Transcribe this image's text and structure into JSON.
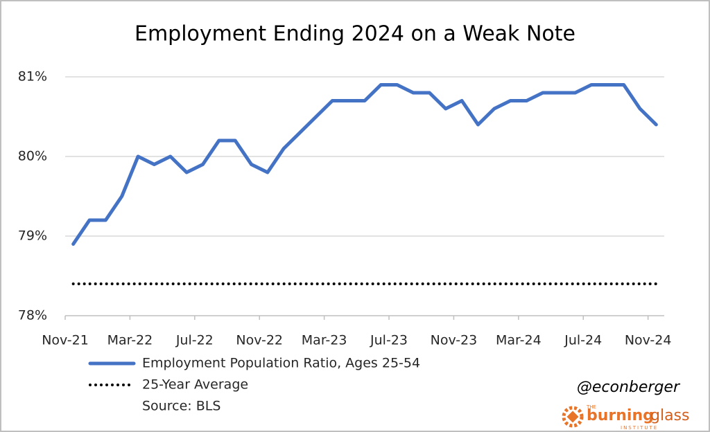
{
  "chart_data": {
    "type": "line",
    "title": "Employment Ending 2024 on a Weak Note",
    "categories": [
      "Nov-21",
      null,
      null,
      null,
      "Mar-22",
      null,
      null,
      null,
      "Jul-22",
      null,
      null,
      null,
      "Nov-22",
      null,
      null,
      null,
      "Mar-23",
      null,
      null,
      null,
      "Jul-23",
      null,
      null,
      null,
      "Nov-23",
      null,
      null,
      null,
      "Mar-24",
      null,
      null,
      null,
      "Jul-24",
      null,
      null,
      null,
      "Nov-24"
    ],
    "series": [
      {
        "name": "Employment Population Ratio, Ages 25-54",
        "color": "#4472c4",
        "style": "solid",
        "values": [
          78.9,
          79.2,
          79.2,
          79.5,
          80.0,
          79.9,
          80.0,
          79.8,
          79.9,
          80.2,
          80.2,
          79.9,
          79.8,
          80.1,
          80.3,
          80.5,
          80.7,
          80.7,
          80.7,
          80.9,
          80.9,
          80.8,
          80.8,
          80.6,
          80.7,
          80.4,
          80.6,
          80.7,
          80.7,
          80.8,
          80.8,
          80.8,
          80.9,
          80.9,
          80.9,
          80.6,
          80.4
        ]
      },
      {
        "name": "25-Year Average",
        "color": "#000000",
        "style": "dotted",
        "values": [
          78.4,
          78.4,
          78.4,
          78.4,
          78.4,
          78.4,
          78.4,
          78.4,
          78.4,
          78.4,
          78.4,
          78.4,
          78.4,
          78.4,
          78.4,
          78.4,
          78.4,
          78.4,
          78.4,
          78.4,
          78.4,
          78.4,
          78.4,
          78.4,
          78.4,
          78.4,
          78.4,
          78.4,
          78.4,
          78.4,
          78.4,
          78.4,
          78.4,
          78.4,
          78.4,
          78.4,
          78.4
        ]
      }
    ],
    "ylim": [
      78,
      81
    ],
    "yticks": [
      {
        "value": 78,
        "label": "78%"
      },
      {
        "value": 79,
        "label": "79%"
      },
      {
        "value": 80,
        "label": "80%"
      },
      {
        "value": 81,
        "label": "81%"
      }
    ],
    "grid": true,
    "source": "Source: BLS"
  },
  "handle": "@econberger",
  "logo": {
    "top": "THE",
    "word1": "burning",
    "word2": "glass",
    "bottom": "INSTITUTE"
  }
}
